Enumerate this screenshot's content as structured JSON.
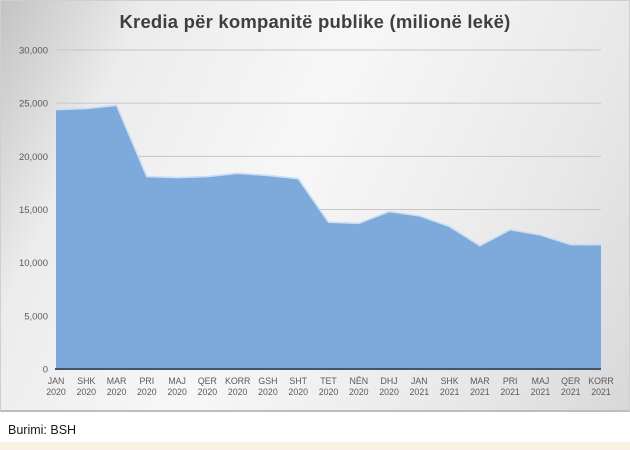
{
  "chart_data": {
    "type": "area",
    "title": "Kredia për kompanitë publike (milionë lekë)",
    "categories": [
      {
        "m": "JAN",
        "y": "2020"
      },
      {
        "m": "SHK",
        "y": "2020"
      },
      {
        "m": "MAR",
        "y": "2020"
      },
      {
        "m": "PRI",
        "y": "2020"
      },
      {
        "m": "MAJ",
        "y": "2020"
      },
      {
        "m": "QER",
        "y": "2020"
      },
      {
        "m": "KORR",
        "y": "2020"
      },
      {
        "m": "GSH",
        "y": "2020"
      },
      {
        "m": "SHT",
        "y": "2020"
      },
      {
        "m": "TET",
        "y": "2020"
      },
      {
        "m": "NËN",
        "y": "2020"
      },
      {
        "m": "DHJ",
        "y": "2020"
      },
      {
        "m": "JAN",
        "y": "2021"
      },
      {
        "m": "SHK",
        "y": "2021"
      },
      {
        "m": "MAR",
        "y": "2021"
      },
      {
        "m": "PRI",
        "y": "2021"
      },
      {
        "m": "MAJ",
        "y": "2021"
      },
      {
        "m": "QER",
        "y": "2021"
      },
      {
        "m": "KORR",
        "y": "2021"
      }
    ],
    "values": [
      24400,
      24500,
      24800,
      18100,
      18000,
      18100,
      18400,
      18200,
      17900,
      13800,
      13700,
      14800,
      14400,
      13400,
      11600,
      13100,
      12600,
      11700,
      11700
    ],
    "xlabel": "",
    "ylabel": "",
    "ylim": [
      0,
      30000
    ],
    "yticks": [
      {
        "v": 30000,
        "label": "30,000"
      },
      {
        "v": 25000,
        "label": "25,000"
      },
      {
        "v": 20000,
        "label": "20,000"
      },
      {
        "v": 15000,
        "label": "15,000"
      },
      {
        "v": 10000,
        "label": "10,000"
      },
      {
        "v": 5000,
        "label": "5,000"
      },
      {
        "v": 0,
        "label": "0"
      }
    ],
    "grid": true,
    "legend": "none",
    "colors": {
      "area_fill": "#7EA9DB",
      "area_edge": "#C9DFF2",
      "axis_line": "#44546A",
      "gridline": "#C6C6C6",
      "tick_text": "#595959",
      "title_text": "#3F3F3F"
    }
  },
  "footer": {
    "source_note": "Burimi: BSH",
    "strip_color": "#FBF0E4"
  }
}
